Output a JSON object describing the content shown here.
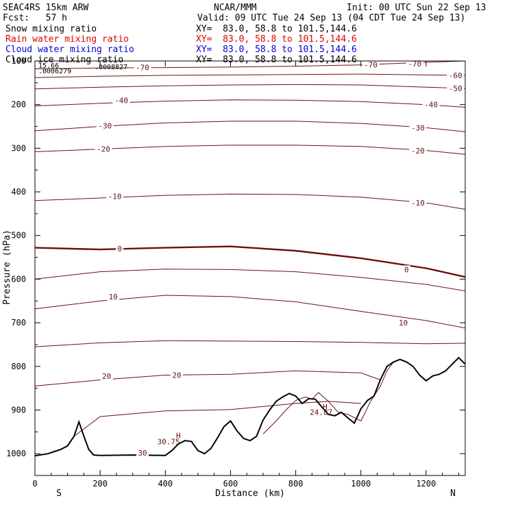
{
  "header": {
    "model": "SEAC4RS 15km ARW",
    "center": "NCAR/MMM",
    "init": "Init: 00 UTC Sun 22 Sep 13",
    "fcst": "Fcst:   57 h",
    "valid": "Valid: 09 UTC Tue 24 Sep 13 (04 CDT Tue 24 Sep 13)"
  },
  "fields": [
    {
      "name": "Snow mixing ratio",
      "xy": "XY=  83.0, 58.8 to 101.5,144.6",
      "color": "#000000"
    },
    {
      "name": "Rain water mixing ratio",
      "xy": "XY=  83.0, 58.8 to 101.5,144.6",
      "color": "#e00000"
    },
    {
      "name": "Cloud water mixing ratio",
      "xy": "XY=  83.0, 58.8 to 101.5,144.6",
      "color": "#0000dd"
    },
    {
      "name": "Cloud ice mixing ratio",
      "xy": "XY=  83.0, 58.8 to 101.5,144.6",
      "color": "#000000"
    }
  ],
  "chart_data": {
    "type": "line",
    "xlabel": "Distance (km)",
    "ylabel": "Pressure (hPa)",
    "xlim": [
      0,
      1320
    ],
    "ylim": [
      1050,
      100
    ],
    "xticks": [
      0,
      200,
      400,
      600,
      800,
      1000,
      1200
    ],
    "yticks": [
      100,
      200,
      300,
      400,
      500,
      600,
      700,
      800,
      900,
      1000
    ],
    "x_end_labels": {
      "left": "S",
      "right": "N"
    },
    "contour_color": "#6b0f0f",
    "terrain_color": "#000000",
    "isotherms": [
      {
        "level": -70,
        "x": [
          0,
          200,
          400,
          600,
          800,
          1000,
          1100,
          1200,
          1320
        ],
        "p": [
          118,
          116,
          115,
          114,
          112,
          109,
          106,
          103,
          100
        ]
      },
      {
        "level": -60,
        "x": [
          0,
          200,
          400,
          600,
          800,
          1000,
          1200,
          1320
        ],
        "p": [
          138,
          135,
          133,
          132,
          131,
          130,
          132,
          133
        ]
      },
      {
        "level": -50,
        "x": [
          0,
          200,
          400,
          600,
          800,
          1000,
          1200,
          1320
        ],
        "p": [
          164,
          160,
          157,
          155,
          154,
          155,
          160,
          163
        ]
      },
      {
        "level": -40,
        "x": [
          0,
          200,
          400,
          600,
          800,
          1000,
          1200,
          1320
        ],
        "p": [
          203,
          197,
          192,
          189,
          190,
          193,
          200,
          206
        ]
      },
      {
        "level": -30,
        "x": [
          0,
          200,
          400,
          600,
          800,
          1000,
          1200,
          1320
        ],
        "p": [
          260,
          250,
          242,
          238,
          238,
          243,
          253,
          262
        ]
      },
      {
        "level": -20,
        "x": [
          0,
          200,
          400,
          600,
          800,
          1000,
          1200,
          1320
        ],
        "p": [
          308,
          302,
          296,
          293,
          293,
          296,
          305,
          314
        ]
      },
      {
        "level": -10,
        "x": [
          0,
          200,
          400,
          600,
          800,
          1000,
          1200,
          1320
        ],
        "p": [
          420,
          414,
          408,
          405,
          406,
          412,
          425,
          440
        ]
      },
      {
        "level": 0,
        "x": [
          0,
          200,
          400,
          600,
          800,
          1000,
          1200,
          1320
        ],
        "p": [
          528,
          532,
          528,
          525,
          535,
          552,
          575,
          595
        ]
      },
      {
        "level": 5,
        "x": [
          0,
          200,
          400,
          600,
          800,
          1000,
          1200,
          1320
        ],
        "p": [
          600,
          583,
          577,
          578,
          583,
          596,
          612,
          627
        ]
      },
      {
        "level": 10,
        "x": [
          0,
          200,
          400,
          600,
          800,
          1000,
          1200,
          1320
        ],
        "p": [
          668,
          650,
          637,
          640,
          652,
          674,
          695,
          712
        ]
      },
      {
        "level": 15,
        "x": [
          0,
          200,
          400,
          600,
          800,
          1000,
          1200,
          1320
        ],
        "p": [
          755,
          746,
          741,
          742,
          743,
          745,
          748,
          747
        ]
      },
      {
        "level": 20,
        "x": [
          0,
          200,
          400,
          600,
          800,
          1000,
          1060
        ],
        "p": [
          845,
          831,
          820,
          818,
          810,
          815,
          831
        ]
      },
      {
        "level": 25,
        "x": [
          120,
          200,
          400,
          600,
          800,
          900,
          1000
        ],
        "p": [
          960,
          915,
          902,
          899,
          885,
          880,
          885
        ]
      }
    ],
    "isotherm_labels": [
      {
        "text": "-70",
        "x": 330,
        "p": 115
      },
      {
        "text": "-70",
        "x": 1030,
        "p": 109
      },
      {
        "text": "-70",
        "x": 1165,
        "p": 106
      },
      {
        "text": "-60",
        "x": 1290,
        "p": 133
      },
      {
        "text": "-50",
        "x": 1290,
        "p": 163
      },
      {
        "text": "-40",
        "x": 265,
        "p": 190
      },
      {
        "text": "-40",
        "x": 1215,
        "p": 200
      },
      {
        "text": "-30",
        "x": 215,
        "p": 248
      },
      {
        "text": "-30",
        "x": 1175,
        "p": 253
      },
      {
        "text": "-20",
        "x": 210,
        "p": 302
      },
      {
        "text": "-20",
        "x": 1175,
        "p": 306
      },
      {
        "text": "-10",
        "x": 245,
        "p": 410
      },
      {
        "text": "-10",
        "x": 1175,
        "p": 425
      },
      {
        "text": "0",
        "x": 260,
        "p": 530
      },
      {
        "text": "0",
        "x": 1140,
        "p": 578
      },
      {
        "text": "10",
        "x": 240,
        "p": 640
      },
      {
        "text": "10",
        "x": 1130,
        "p": 700
      },
      {
        "text": "20",
        "x": 220,
        "p": 822
      },
      {
        "text": "20",
        "x": 435,
        "p": 820
      },
      {
        "text": "30",
        "x": 330,
        "p": 998
      }
    ],
    "terrain": {
      "x": [
        0,
        40,
        60,
        80,
        100,
        120,
        135,
        150,
        165,
        180,
        200,
        300,
        400,
        420,
        440,
        460,
        480,
        500,
        520,
        540,
        560,
        580,
        600,
        620,
        640,
        660,
        680,
        700,
        720,
        740,
        760,
        780,
        800,
        820,
        840,
        860,
        880,
        900,
        920,
        940,
        960,
        980,
        1000,
        1020,
        1040,
        1060,
        1080,
        1100,
        1120,
        1140,
        1160,
        1180,
        1200,
        1220,
        1240,
        1260,
        1280,
        1300,
        1320
      ],
      "p": [
        1005,
        1000,
        995,
        990,
        982,
        960,
        927,
        960,
        990,
        1003,
        1004,
        1003,
        1004,
        993,
        978,
        970,
        972,
        993,
        1000,
        988,
        964,
        938,
        925,
        948,
        965,
        970,
        960,
        923,
        900,
        880,
        870,
        862,
        868,
        885,
        874,
        875,
        893,
        910,
        913,
        905,
        918,
        930,
        897,
        878,
        868,
        830,
        800,
        790,
        784,
        790,
        800,
        820,
        833,
        822,
        818,
        810,
        795,
        780,
        795
      ]
    },
    "extra_series": [
      {
        "name": "Rain water mixing ratio",
        "color": "#6b0f0f",
        "x": [
          700,
          740,
          770,
          800,
          830,
          850,
          870,
          900,
          930,
          960,
          1000,
          1030,
          1060,
          1080,
          1100
        ],
        "p": [
          955,
          925,
          900,
          878,
          870,
          875,
          860,
          880,
          905,
          910,
          925,
          880,
          845,
          810,
          790
        ]
      }
    ],
    "max_labels": [
      {
        "text": "H",
        "x": 440,
        "p": 958
      },
      {
        "text": "30.75",
        "x": 410,
        "p": 972
      },
      {
        "text": "H",
        "x": 890,
        "p": 892
      },
      {
        "text": "24.87",
        "x": 878,
        "p": 905
      }
    ],
    "corner_values": [
      ".0006279",
      ".0008827",
      "15.66"
    ]
  }
}
